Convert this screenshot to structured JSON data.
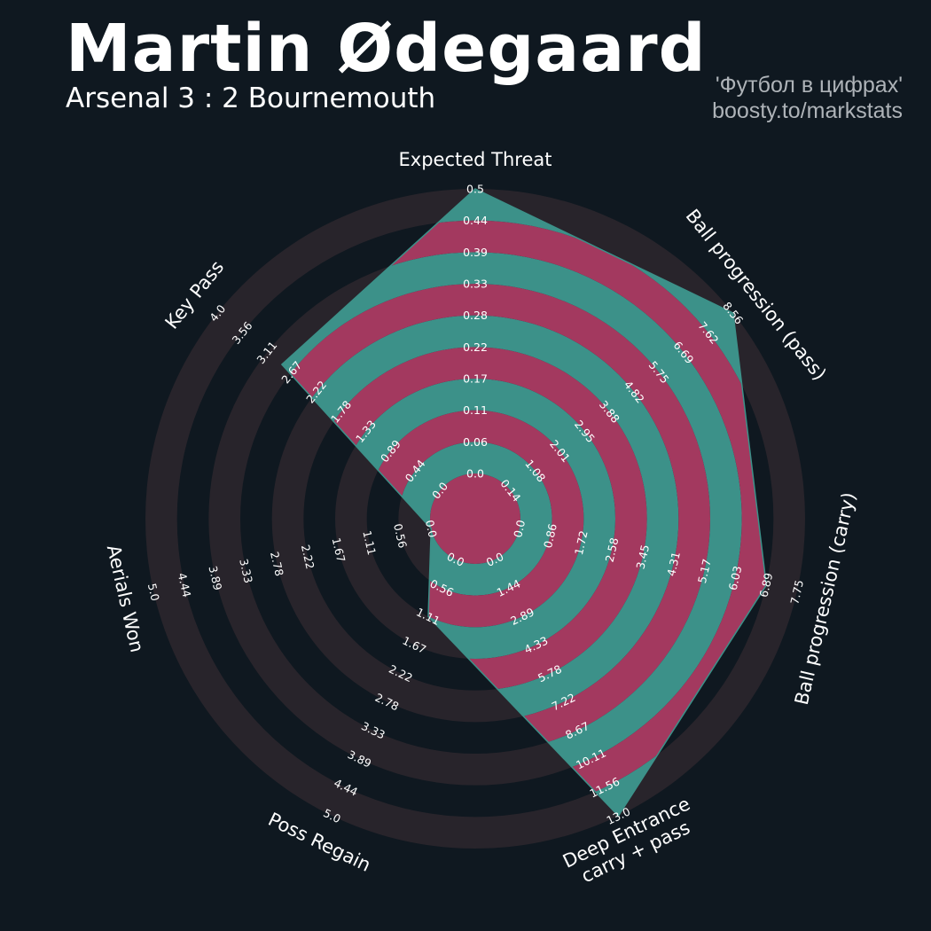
{
  "title": "Martin Ødegaard",
  "subtitle": "Arsenal 3 : 2 Bournemouth",
  "credit": {
    "line1": "'Футбол в цифрах'",
    "line2": "boosty.to/markstats"
  },
  "colors": {
    "background": "#0f1820",
    "ring_outer_band": "#28242b",
    "ring_fill_odd": "#3c9189",
    "ring_fill_even": "#a3395f",
    "text": "#ffffff",
    "credit_text": "#aeb3b8"
  },
  "chart_data": {
    "type": "radar",
    "title": "Martin Ødegaard",
    "parameters": [
      {
        "name": "Expected Threat",
        "min": 0.0,
        "max": 0.5,
        "value": 0.5,
        "ticks": [
          "0.0",
          "0.06",
          "0.11",
          "0.17",
          "0.22",
          "0.28",
          "0.33",
          "0.39",
          "0.44",
          "0.5"
        ]
      },
      {
        "name": "Ball progression (pass)",
        "min": 0.14,
        "max": 8.56,
        "value": 8.56,
        "ticks": [
          "0.14",
          "1.08",
          "2.01",
          "2.95",
          "3.88",
          "4.82",
          "5.75",
          "6.69",
          "7.62",
          "8.56"
        ]
      },
      {
        "name": "Ball progression (carry)",
        "min": 0.0,
        "max": 7.75,
        "value": 6.9,
        "ticks": [
          "0.0",
          "0.86",
          "1.72",
          "2.58",
          "3.45",
          "4.31",
          "5.17",
          "6.03",
          "6.89",
          "7.75"
        ]
      },
      {
        "name": "Deep Entrance\ncarry + pass",
        "min": 0.0,
        "max": 13.0,
        "value": 13.0,
        "ticks": [
          "0.0",
          "1.44",
          "2.89",
          "4.33",
          "5.78",
          "7.22",
          "8.67",
          "10.11",
          "11.56",
          "13.0"
        ]
      },
      {
        "name": "Poss Regain",
        "min": 0.0,
        "max": 5.0,
        "value": 1.11,
        "ticks": [
          "0.0",
          "0.56",
          "1.11",
          "1.67",
          "2.22",
          "2.78",
          "3.33",
          "3.89",
          "4.44",
          "5.0"
        ]
      },
      {
        "name": "Aerials Won",
        "min": 0.0,
        "max": 5.0,
        "value": 0.0,
        "ticks": [
          "0.0",
          "0.56",
          "1.11",
          "1.67",
          "2.22",
          "2.78",
          "3.33",
          "3.89",
          "4.44",
          "5.0"
        ]
      },
      {
        "name": "Key Pass",
        "min": 0.0,
        "max": 4.0,
        "value": 2.84,
        "ticks": [
          "0.0",
          "0.44",
          "0.89",
          "1.33",
          "1.78",
          "2.22",
          "2.67",
          "3.11",
          "3.56",
          "4.0"
        ]
      }
    ],
    "rings": 10
  }
}
